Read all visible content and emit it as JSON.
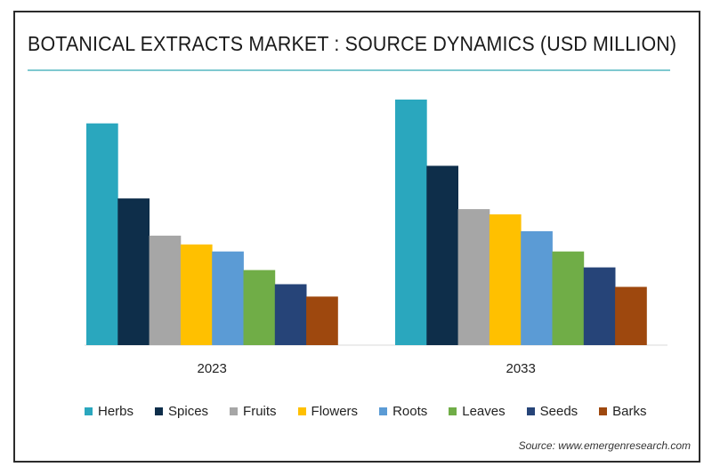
{
  "chart_data": {
    "type": "bar",
    "title": "BOTANICAL EXTRACTS MARKET : SOURCE DYNAMICS (USD MILLION)",
    "xlabel": "",
    "ylabel": "",
    "categories": [
      "2023",
      "2033"
    ],
    "series": [
      {
        "name": "Herbs",
        "color": "#2aa7be",
        "values": [
          251,
          278
        ]
      },
      {
        "name": "Spices",
        "color": "#0e2e4a",
        "values": [
          166,
          203
        ]
      },
      {
        "name": "Fruits",
        "color": "#a6a6a6",
        "values": [
          124,
          154
        ]
      },
      {
        "name": "Flowers",
        "color": "#ffc000",
        "values": [
          114,
          148
        ]
      },
      {
        "name": "Roots",
        "color": "#5b9bd5",
        "values": [
          106,
          129
        ]
      },
      {
        "name": "Leaves",
        "color": "#70ad47",
        "values": [
          85,
          106
        ]
      },
      {
        "name": "Seeds",
        "color": "#264478",
        "values": [
          69,
          88
        ]
      },
      {
        "name": "Barks",
        "color": "#9e480e",
        "values": [
          55,
          66
        ]
      }
    ],
    "ylim": [
      0,
      290
    ],
    "grid": false,
    "legend": "bottom"
  },
  "source": "Source: www.emergenresearch.com"
}
